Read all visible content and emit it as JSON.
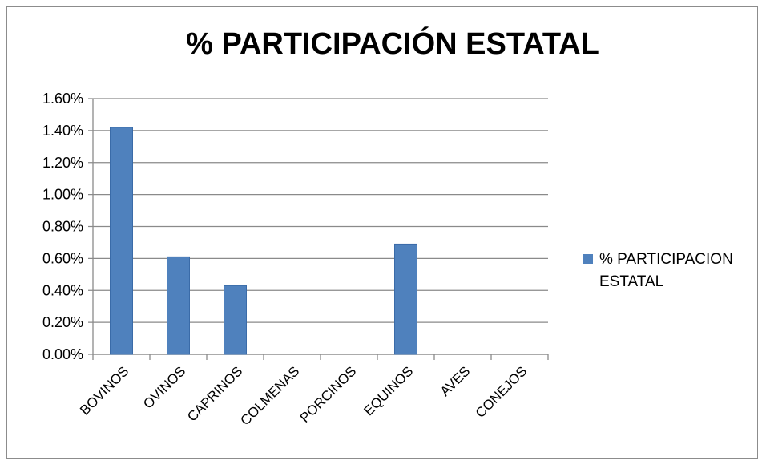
{
  "chart_data": {
    "type": "bar",
    "title": "% PARTICIPACIÓN ESTATAL",
    "categories": [
      "BOVINOS",
      "OVINOS",
      "CAPRINOS",
      "COLMENAS",
      "PORCINOS",
      "EQUINOS",
      "AVES",
      "CONEJOS"
    ],
    "series": [
      {
        "name": "% PARTICIPACION ESTATAL",
        "values": [
          0.0142,
          0.0061,
          0.0043,
          0,
          0,
          0.0069,
          0,
          0
        ]
      }
    ],
    "ylim": [
      0,
      0.016
    ],
    "yticks": [
      "0.00%",
      "0.20%",
      "0.40%",
      "0.60%",
      "0.80%",
      "1.00%",
      "1.20%",
      "1.40%",
      "1.60%"
    ],
    "grid": true,
    "legend_position": "right",
    "bar_color": "#4f81bd"
  }
}
